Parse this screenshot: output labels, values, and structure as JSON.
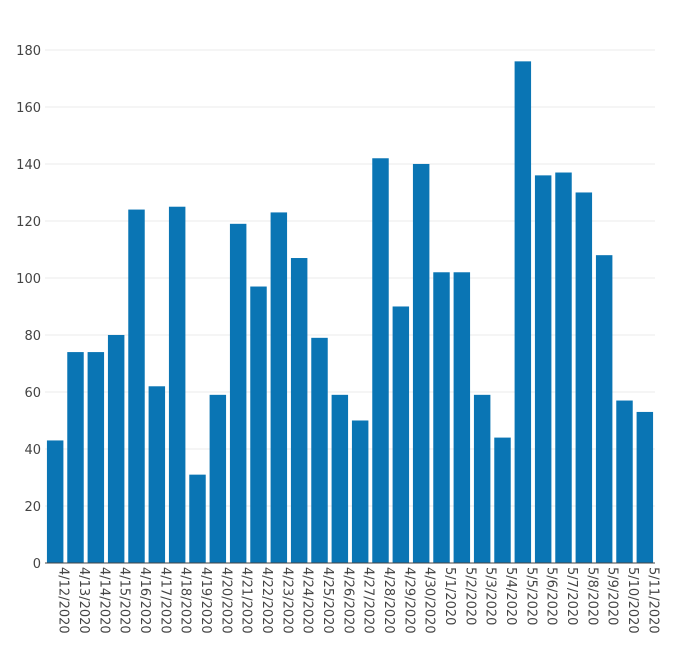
{
  "chart_data": {
    "type": "bar",
    "categories": [
      "4/12/2020",
      "4/13/2020",
      "4/14/2020",
      "4/15/2020",
      "4/16/2020",
      "4/17/2020",
      "4/18/2020",
      "4/19/2020",
      "4/20/2020",
      "4/21/2020",
      "4/22/2020",
      "4/23/2020",
      "4/24/2020",
      "4/25/2020",
      "4/26/2020",
      "4/27/2020",
      "4/28/2020",
      "4/29/2020",
      "4/30/2020",
      "5/1/2020",
      "5/2/2020",
      "5/3/2020",
      "5/4/2020",
      "5/5/2020",
      "5/6/2020",
      "5/7/2020",
      "5/8/2020",
      "5/9/2020",
      "5/10/2020",
      "5/11/2020"
    ],
    "values": [
      43,
      74,
      74,
      80,
      124,
      62,
      125,
      31,
      59,
      119,
      97,
      123,
      107,
      79,
      59,
      50,
      142,
      90,
      140,
      102,
      102,
      59,
      44,
      176,
      136,
      137,
      130,
      108,
      57,
      53
    ],
    "yticks": [
      0,
      20,
      40,
      60,
      80,
      100,
      120,
      140,
      160,
      180
    ],
    "ylim": [
      0,
      187
    ],
    "bar_color": "#0a75b4",
    "grid": true,
    "legend": "none"
  }
}
